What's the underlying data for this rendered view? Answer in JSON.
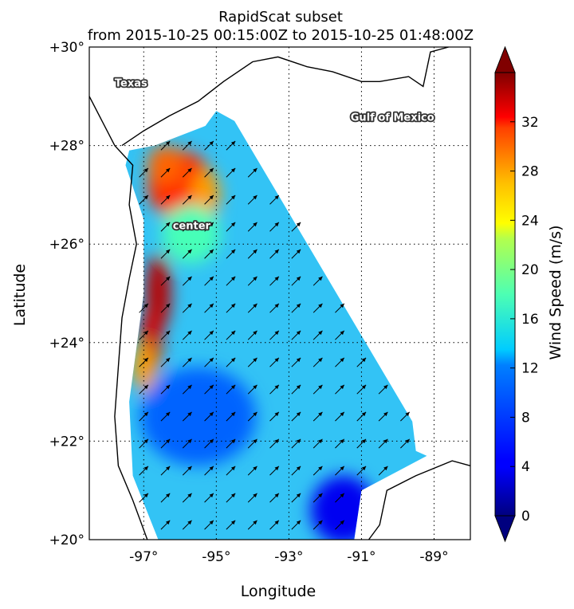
{
  "chart_data": {
    "type": "heatmap",
    "title": "RapidScat subset",
    "subtitle": "from 2015-10-25 00:15:00Z to 2015-10-25 01:48:00Z",
    "xlabel": "Longitude",
    "ylabel": "Latitude",
    "xlim": [
      -98.5,
      -88
    ],
    "ylim": [
      20,
      30
    ],
    "grid": true,
    "x_ticks": [
      {
        "value": -97,
        "label": "-97°"
      },
      {
        "value": -95,
        "label": "-95°"
      },
      {
        "value": -93,
        "label": "-93°"
      },
      {
        "value": -91,
        "label": "-91°"
      },
      {
        "value": -89,
        "label": "-89°"
      }
    ],
    "y_ticks": [
      {
        "value": 30,
        "label": "+30°"
      },
      {
        "value": 28,
        "label": "+28°"
      },
      {
        "value": 26,
        "label": "+26°"
      },
      {
        "value": 24,
        "label": "+24°"
      },
      {
        "value": 22,
        "label": "+22°"
      },
      {
        "value": 20,
        "label": "+20°"
      }
    ],
    "colorbar": {
      "label": "Wind Speed (m/s)",
      "range": [
        0,
        36
      ],
      "ticks": [
        {
          "value": 0,
          "label": "0"
        },
        {
          "value": 4,
          "label": "4"
        },
        {
          "value": 8,
          "label": "8"
        },
        {
          "value": 12,
          "label": "12"
        },
        {
          "value": 16,
          "label": "16"
        },
        {
          "value": 20,
          "label": "20"
        },
        {
          "value": 24,
          "label": "24"
        },
        {
          "value": 28,
          "label": "28"
        },
        {
          "value": 32,
          "label": "32"
        }
      ]
    },
    "annotations": [
      {
        "text": "Texas",
        "lon": -97.8,
        "lat": 29.2
      },
      {
        "text": "Gulf of Mexico",
        "lon": -91.3,
        "lat": 28.5
      },
      {
        "text": "center",
        "lon": -96.2,
        "lat": 26.3
      }
    ],
    "swath_boundary": [
      [
        -96.7,
        28.0
      ],
      [
        -95.3,
        28.4
      ],
      [
        -95.0,
        28.7
      ],
      [
        -94.5,
        28.5
      ],
      [
        -89.6,
        22.4
      ],
      [
        -89.5,
        21.8
      ],
      [
        -89.2,
        21.7
      ],
      [
        -91.0,
        21.0
      ],
      [
        -91.2,
        20.0
      ],
      [
        -96.6,
        20.0
      ],
      [
        -97.3,
        21.3
      ],
      [
        -97.4,
        22.8
      ],
      [
        -97.0,
        25.0
      ],
      [
        -97.0,
        26.5
      ],
      [
        -97.5,
        27.6
      ],
      [
        -97.4,
        27.9
      ]
    ],
    "wind_speed_regions": [
      {
        "lon": -96.0,
        "lat": 27.2,
        "speed": 30,
        "rx": 0.9,
        "ry": 0.7
      },
      {
        "lon": -96.4,
        "lat": 27.6,
        "speed": 28,
        "rx": 0.5,
        "ry": 0.4
      },
      {
        "lon": -95.3,
        "lat": 27.0,
        "speed": 26,
        "rx": 0.4,
        "ry": 0.5
      },
      {
        "lon": -96.6,
        "lat": 25.0,
        "speed": 34,
        "rx": 0.35,
        "ry": 0.8
      },
      {
        "lon": -96.8,
        "lat": 24.0,
        "speed": 33,
        "rx": 0.3,
        "ry": 0.7
      },
      {
        "lon": -97.0,
        "lat": 23.5,
        "speed": 26,
        "rx": 0.3,
        "ry": 0.5
      },
      {
        "lon": -95.7,
        "lat": 26.2,
        "speed": 16,
        "rx": 0.8,
        "ry": 0.6
      },
      {
        "lon": -91.5,
        "lat": 20.6,
        "speed": 4,
        "rx": 0.9,
        "ry": 0.7
      },
      {
        "lon": -95.5,
        "lat": 22.5,
        "speed": 8,
        "rx": 1.6,
        "ry": 1.0
      }
    ],
    "wind_vector_grid": {
      "lon_step": 0.6,
      "lat_step": 0.55,
      "mean_direction_deg": 135
    },
    "colors": {
      "land": "#ffffff",
      "coastline": "#000000",
      "grid": "#000000"
    }
  }
}
